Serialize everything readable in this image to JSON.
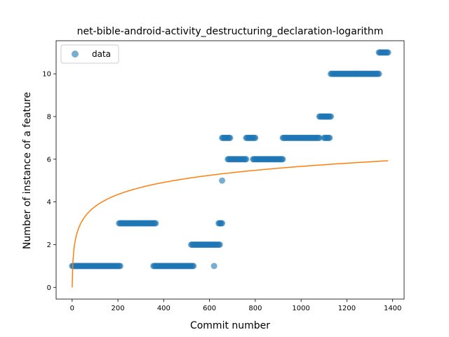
{
  "chart_data": {
    "type": "scatter",
    "title": "net-bible-android-activity_destructuring_declaration-logarithm",
    "xlabel": "Commit number",
    "ylabel": "Number of instance of a feature",
    "xlim": [
      -70,
      1450
    ],
    "ylim": [
      -0.55,
      11.55
    ],
    "xticks": [
      0,
      200,
      400,
      600,
      800,
      1000,
      1200,
      1400
    ],
    "yticks": [
      0,
      2,
      4,
      6,
      8,
      10
    ],
    "grid": false,
    "legend": {
      "position": "top-left",
      "entries": [
        "data"
      ]
    },
    "colors": {
      "data": "#1f77b4",
      "fit": "#ff7f0e"
    },
    "series": [
      {
        "name": "data",
        "kind": "scatter",
        "segments": [
          {
            "x": [
              0,
              210
            ],
            "y": 1
          },
          {
            "x": [
              205,
              365
            ],
            "y": 3
          },
          {
            "x": [
              355,
              530
            ],
            "y": 1
          },
          {
            "x": [
              520,
              645
            ],
            "y": 2
          },
          {
            "x": [
              620,
              620
            ],
            "y": 1
          },
          {
            "x": [
              640,
              655
            ],
            "y": 3
          },
          {
            "x": [
              655,
              655
            ],
            "y": 5
          },
          {
            "x": [
              655,
              690
            ],
            "y": 7
          },
          {
            "x": [
              680,
              760
            ],
            "y": 6
          },
          {
            "x": [
              760,
              800
            ],
            "y": 7
          },
          {
            "x": [
              790,
              920
            ],
            "y": 6
          },
          {
            "x": [
              920,
              1080
            ],
            "y": 7
          },
          {
            "x": [
              1080,
              1110
            ],
            "y": 8
          },
          {
            "x": [
              1100,
              1125
            ],
            "y": 7
          },
          {
            "x": [
              1110,
              1130
            ],
            "y": 8
          },
          {
            "x": [
              1130,
              1340
            ],
            "y": 10
          },
          {
            "x": [
              1340,
              1380
            ],
            "y": 11
          }
        ]
      },
      {
        "name": "",
        "kind": "line",
        "model": "logarithmic",
        "a": 1.22,
        "b": 0.672,
        "x_range": [
          0,
          1380
        ]
      }
    ]
  }
}
